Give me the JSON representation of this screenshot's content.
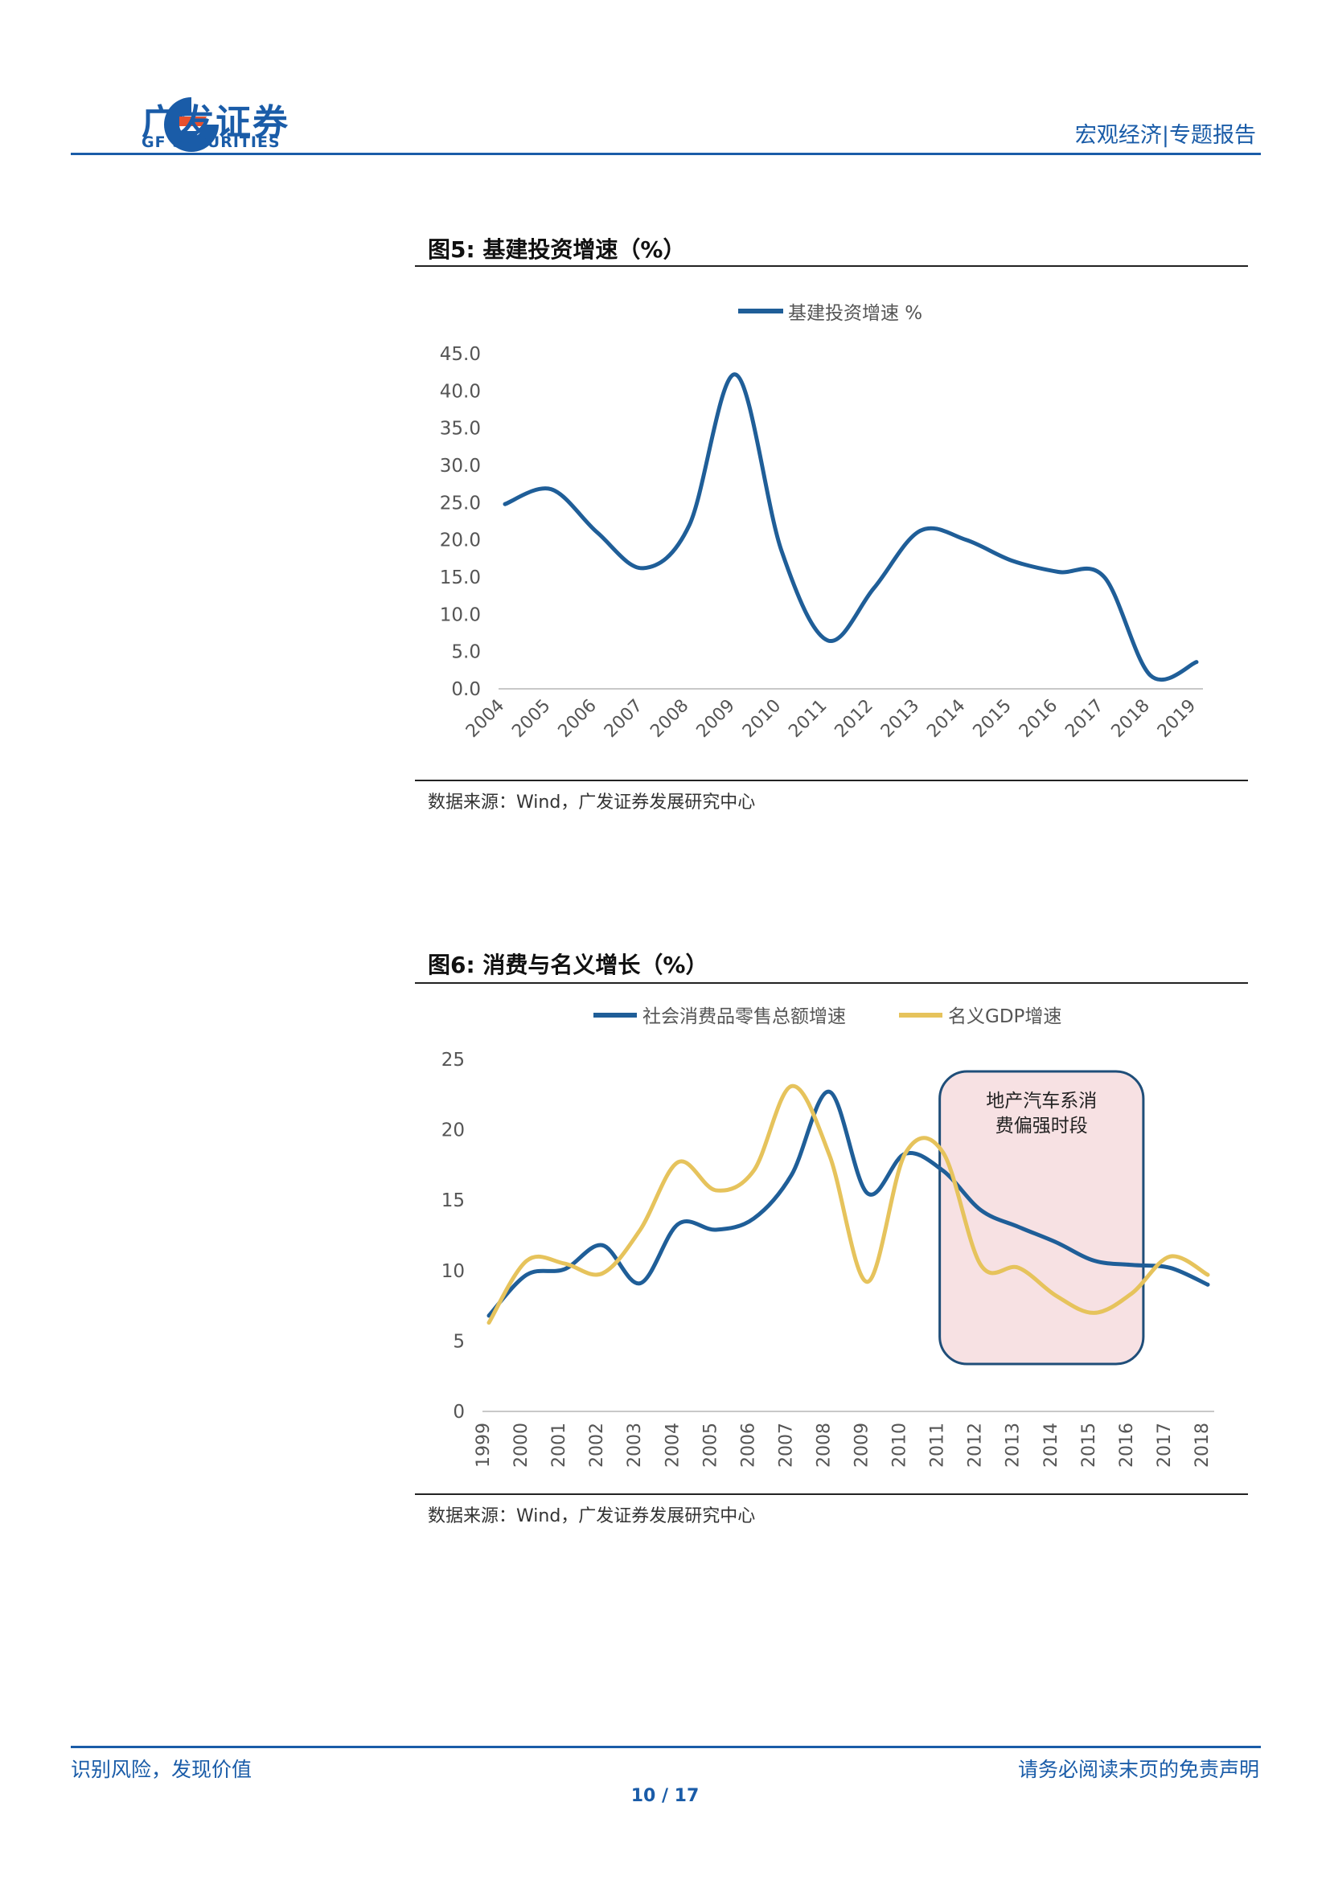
{
  "header": {
    "brand_cn": "广发证券",
    "brand_en": "GF SECURITIES",
    "report_type": "宏观经济|专题报告",
    "brand_color": "#1a5ca8",
    "logo_accent": "#e8502c"
  },
  "figures": [
    {
      "title": "图5:  基建投资增速（%）",
      "source": "数据来源：Wind，广发证券发展研究中心"
    },
    {
      "title": "图6:  消费与名义增长（%）",
      "source": "数据来源：Wind，广发证券发展研究中心"
    }
  ],
  "chart_data": [
    {
      "type": "line",
      "x": [
        "2004",
        "2005",
        "2006",
        "2007",
        "2008",
        "2009",
        "2010",
        "2011",
        "2012",
        "2013",
        "2014",
        "2015",
        "2016",
        "2017",
        "2018",
        "2019"
      ],
      "series": [
        {
          "name": "基建投资增速 %",
          "color": "#1f5e98",
          "values": [
            24.8,
            26.8,
            21.0,
            16.2,
            22.0,
            42.2,
            18.5,
            6.5,
            13.5,
            21.2,
            20.0,
            17.2,
            15.7,
            15.0,
            1.8,
            3.6
          ]
        }
      ],
      "ylim": [
        0,
        45
      ],
      "yticks": [
        "0.0",
        "5.0",
        "10.0",
        "15.0",
        "20.0",
        "25.0",
        "30.0",
        "35.0",
        "40.0",
        "45.0"
      ],
      "legend": "top-center",
      "grid": false
    },
    {
      "type": "line",
      "x": [
        "1999",
        "2000",
        "2001",
        "2002",
        "2003",
        "2004",
        "2005",
        "2006",
        "2007",
        "2008",
        "2009",
        "2010",
        "2011",
        "2012",
        "2013",
        "2014",
        "2015",
        "2016",
        "2017",
        "2018"
      ],
      "series": [
        {
          "name": "社会消费品零售总额增速",
          "color": "#1f5e98",
          "values": [
            6.8,
            9.7,
            10.1,
            11.8,
            9.1,
            13.3,
            12.9,
            13.7,
            16.8,
            22.7,
            15.5,
            18.3,
            17.1,
            14.3,
            13.1,
            12.0,
            10.7,
            10.4,
            10.2,
            9.0
          ]
        },
        {
          "name": "名义GDP增速",
          "color": "#e6c35c",
          "values": [
            6.3,
            10.7,
            10.5,
            9.8,
            12.9,
            17.7,
            15.7,
            17.1,
            23.1,
            18.2,
            9.2,
            18.3,
            18.4,
            10.4,
            10.2,
            8.2,
            7.0,
            8.4,
            11.0,
            9.7
          ]
        }
      ],
      "ylim": [
        0,
        25
      ],
      "yticks": [
        "0",
        "5",
        "10",
        "15",
        "20",
        "25"
      ],
      "legend": "top-center",
      "grid": false,
      "annotation": {
        "text_line1": "地产汽车系消",
        "text_line2": "费偏强时段",
        "x_from": "2011",
        "x_to": "2016",
        "fill": "#f7e1e3",
        "border": "#1f4e79"
      }
    }
  ],
  "footer": {
    "left": "识别风险，发现价值",
    "right": "请务必阅读末页的免责声明",
    "page": "10 / 17"
  }
}
